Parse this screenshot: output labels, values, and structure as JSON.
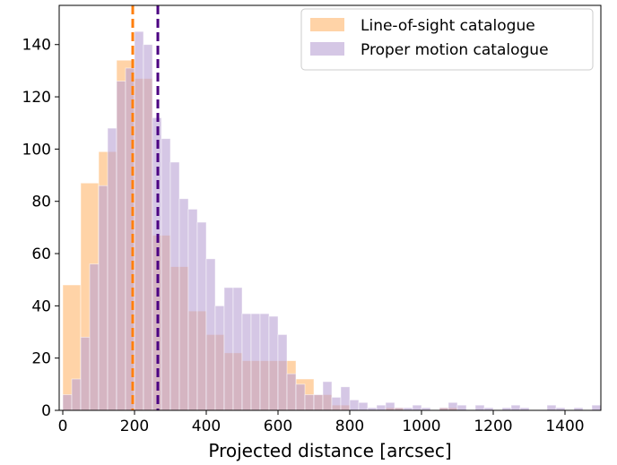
{
  "chart_data": {
    "type": "bar",
    "xlabel": "Projected distance [arcsec]",
    "ylabel": "",
    "xlim": [
      -10,
      1500
    ],
    "ylim": [
      0,
      155
    ],
    "xticks": [
      0,
      200,
      400,
      600,
      800,
      1000,
      1200,
      1400
    ],
    "yticks": [
      0,
      20,
      40,
      60,
      80,
      100,
      120,
      140
    ],
    "legend_position": "top-right",
    "bin_width": 50,
    "series": [
      {
        "name": "Line-of-sight catalogue",
        "color": "#ffbb78",
        "opacity": 0.65,
        "bin_edges": [
          0,
          50,
          100,
          150,
          200,
          250,
          300,
          350,
          400,
          450,
          500,
          550,
          600,
          650,
          700,
          750,
          800,
          850,
          900,
          950,
          1000,
          1050,
          1100,
          1150,
          1200,
          1250,
          1300,
          1350,
          1400,
          1450,
          1500
        ],
        "counts": [
          48,
          87,
          99,
          134,
          127,
          67,
          55,
          38,
          29,
          22,
          19,
          19,
          19,
          12,
          6,
          2,
          0,
          0,
          1,
          0,
          0,
          1,
          0,
          0,
          0,
          0,
          0,
          0,
          0,
          0
        ],
        "mean_line": 195,
        "mean_color": "#ff7f0e"
      },
      {
        "name": "Proper motion catalogue",
        "color": "#b9a1d3",
        "opacity": 0.6,
        "bin_edges": [
          0,
          25,
          50,
          75,
          100,
          125,
          150,
          175,
          200,
          225,
          250,
          275,
          300,
          325,
          350,
          375,
          400,
          425,
          450,
          475,
          500,
          525,
          550,
          575,
          600,
          625,
          650,
          675,
          700,
          725,
          750,
          775,
          800,
          825,
          850,
          875,
          900,
          925,
          950,
          975,
          1000,
          1025,
          1050,
          1075,
          1100,
          1125,
          1150,
          1175,
          1200,
          1225,
          1250,
          1275,
          1300,
          1325,
          1350,
          1375,
          1400,
          1425,
          1450,
          1475,
          1500
        ],
        "counts": [
          6,
          12,
          28,
          56,
          86,
          108,
          126,
          131,
          145,
          140,
          112,
          104,
          95,
          81,
          77,
          72,
          58,
          40,
          47,
          47,
          37,
          37,
          37,
          36,
          29,
          14,
          10,
          6,
          6,
          11,
          5,
          9,
          4,
          3,
          1,
          2,
          3,
          1,
          1,
          2,
          1,
          0,
          1,
          3,
          2,
          0,
          2,
          1,
          0,
          1,
          2,
          1,
          0,
          0,
          2,
          1,
          0,
          1,
          0,
          2
        ],
        "mean_line": 265,
        "mean_color": "#4b0082"
      }
    ]
  }
}
